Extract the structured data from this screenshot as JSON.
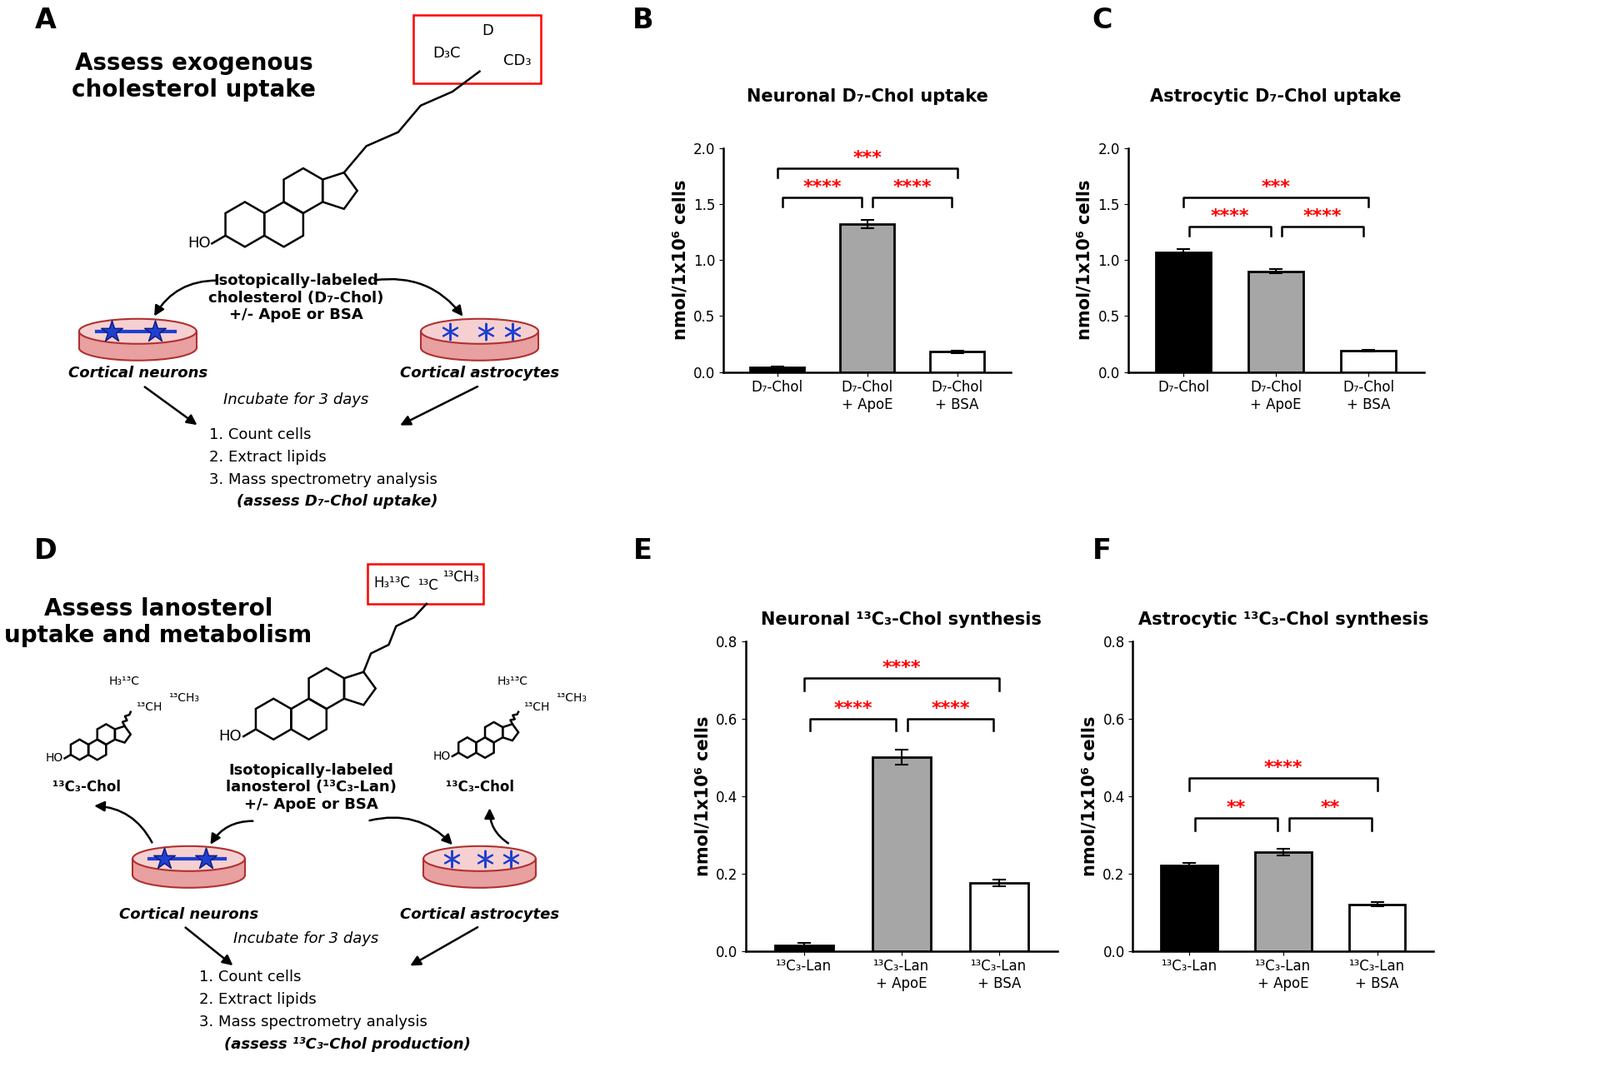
{
  "chart_data": [
    {
      "panel": "B",
      "type": "bar",
      "title": "Neuronal D₇-Chol uptake",
      "ylabel": "nmol/1x10⁶ cells",
      "categories": [
        "D₇-Chol",
        "D₇-Chol\n+ ApoE",
        "D₇-Chol\n+ BSA"
      ],
      "values": [
        0.04,
        1.32,
        0.18
      ],
      "errors": [
        0.01,
        0.04,
        0.01
      ],
      "colors": [
        "#000000",
        "#a6a6a6",
        "#ffffff"
      ],
      "ylim": [
        0,
        2
      ],
      "yticks": [
        {
          "value": 0,
          "label": "0.0"
        },
        0.5,
        {
          "value": 1,
          "label": "1.0"
        },
        1.5,
        {
          "value": 2,
          "label": "2.0"
        }
      ],
      "significance": [
        {
          "pair": [
            0,
            1
          ],
          "label": "****"
        },
        {
          "pair": [
            1,
            2
          ],
          "label": "****"
        },
        {
          "pair": [
            0,
            2
          ],
          "label": "***"
        }
      ]
    },
    {
      "panel": "C",
      "type": "bar",
      "title": "Astrocytic D₇-Chol uptake",
      "ylabel": "nmol/1x10⁶ cells",
      "categories": [
        "D₇-Chol",
        "D₇-Chol\n+ ApoE",
        "D₇-Chol\n+ BSA"
      ],
      "values": [
        1.07,
        0.9,
        0.19
      ],
      "errors": [
        0.03,
        0.02,
        0.01
      ],
      "colors": [
        "#000000",
        "#a6a6a6",
        "#ffffff"
      ],
      "ylim": [
        0,
        2
      ],
      "yticks": [
        {
          "value": 0,
          "label": "0.0"
        },
        0.5,
        {
          "value": 1,
          "label": "1.0"
        },
        1.5,
        {
          "value": 2,
          "label": "2.0"
        }
      ],
      "significance": [
        {
          "pair": [
            0,
            1
          ],
          "label": "****"
        },
        {
          "pair": [
            1,
            2
          ],
          "label": "****"
        },
        {
          "pair": [
            0,
            2
          ],
          "label": "***"
        }
      ]
    },
    {
      "panel": "E",
      "type": "bar",
      "title": "Neuronal ¹³C₃-Chol synthesis",
      "ylabel": "nmol/1x10⁶ cells",
      "categories": [
        "¹³C₃-Lan",
        "¹³C₃-Lan\n+ ApoE",
        "¹³C₃-Lan\n+ BSA"
      ],
      "values": [
        0.015,
        0.5,
        0.175
      ],
      "errors": [
        0.005,
        0.02,
        0.008
      ],
      "colors": [
        "#000000",
        "#a6a6a6",
        "#ffffff"
      ],
      "ylim": [
        0,
        0.8
      ],
      "yticks": [
        {
          "value": 0,
          "label": "0.0"
        },
        0.2,
        0.4,
        0.6,
        0.8
      ],
      "significance": [
        {
          "pair": [
            0,
            1
          ],
          "label": "****"
        },
        {
          "pair": [
            1,
            2
          ],
          "label": "****"
        },
        {
          "pair": [
            0,
            2
          ],
          "label": "****"
        }
      ]
    },
    {
      "panel": "F",
      "type": "bar",
      "title": "Astrocytic ¹³C₃-Chol synthesis",
      "ylabel": "nmol/1x10⁶ cells",
      "categories": [
        "¹³C₃-Lan",
        "¹³C₃-Lan\n+ ApoE",
        "¹³C₃-Lan\n+ BSA"
      ],
      "values": [
        0.22,
        0.255,
        0.12
      ],
      "errors": [
        0.007,
        0.008,
        0.005
      ],
      "colors": [
        "#000000",
        "#a6a6a6",
        "#ffffff"
      ],
      "ylim": [
        0,
        0.8
      ],
      "yticks": [
        {
          "value": 0,
          "label": "0.0"
        },
        0.2,
        0.4,
        0.6,
        0.8
      ],
      "significance": [
        {
          "pair": [
            0,
            1
          ],
          "label": "**"
        },
        {
          "pair": [
            1,
            2
          ],
          "label": "**"
        },
        {
          "pair": [
            0,
            2
          ],
          "label": "****"
        }
      ]
    }
  ],
  "diagrams": [
    {
      "panel": "A",
      "title": "Assess exogenous\ncholesterol uptake",
      "box_labels": [
        "D",
        "D₃C",
        "CD₃"
      ],
      "hydroxyl": "HO",
      "compound": "Isotopically-labeled\ncholesterol (D₇-Chol)\n+/- ApoE or BSA",
      "cells": [
        "Cortical neurons",
        "Cortical astrocytes"
      ],
      "incubation": "Incubate for 3 days",
      "steps": [
        "1. Count cells",
        "2. Extract lipids",
        "3. Mass spectrometry analysis"
      ],
      "readout": "(assess D₇-Chol uptake)"
    },
    {
      "panel": "D",
      "title": "Assess lanosterol\nuptake and metabolism",
      "box_labels": [
        "H₃¹³C",
        "¹³C",
        "¹³CH₃"
      ],
      "hydroxyl": "HO",
      "product_chain": [
        "H₃¹³C",
        "¹³CH",
        "¹³CH₃"
      ],
      "product": "¹³C₃-Chol",
      "compound": "Isotopically-labeled\nlanosterol (¹³C₃-Lan)\n+/- ApoE or BSA",
      "cells": [
        "Cortical neurons",
        "Cortical astrocytes"
      ],
      "incubation": "Incubate for 3 days",
      "steps": [
        "1. Count cells",
        "2. Extract lipids",
        "3. Mass spectrometry analysis"
      ],
      "readout": "(assess ¹³C₃-Chol production)"
    }
  ]
}
